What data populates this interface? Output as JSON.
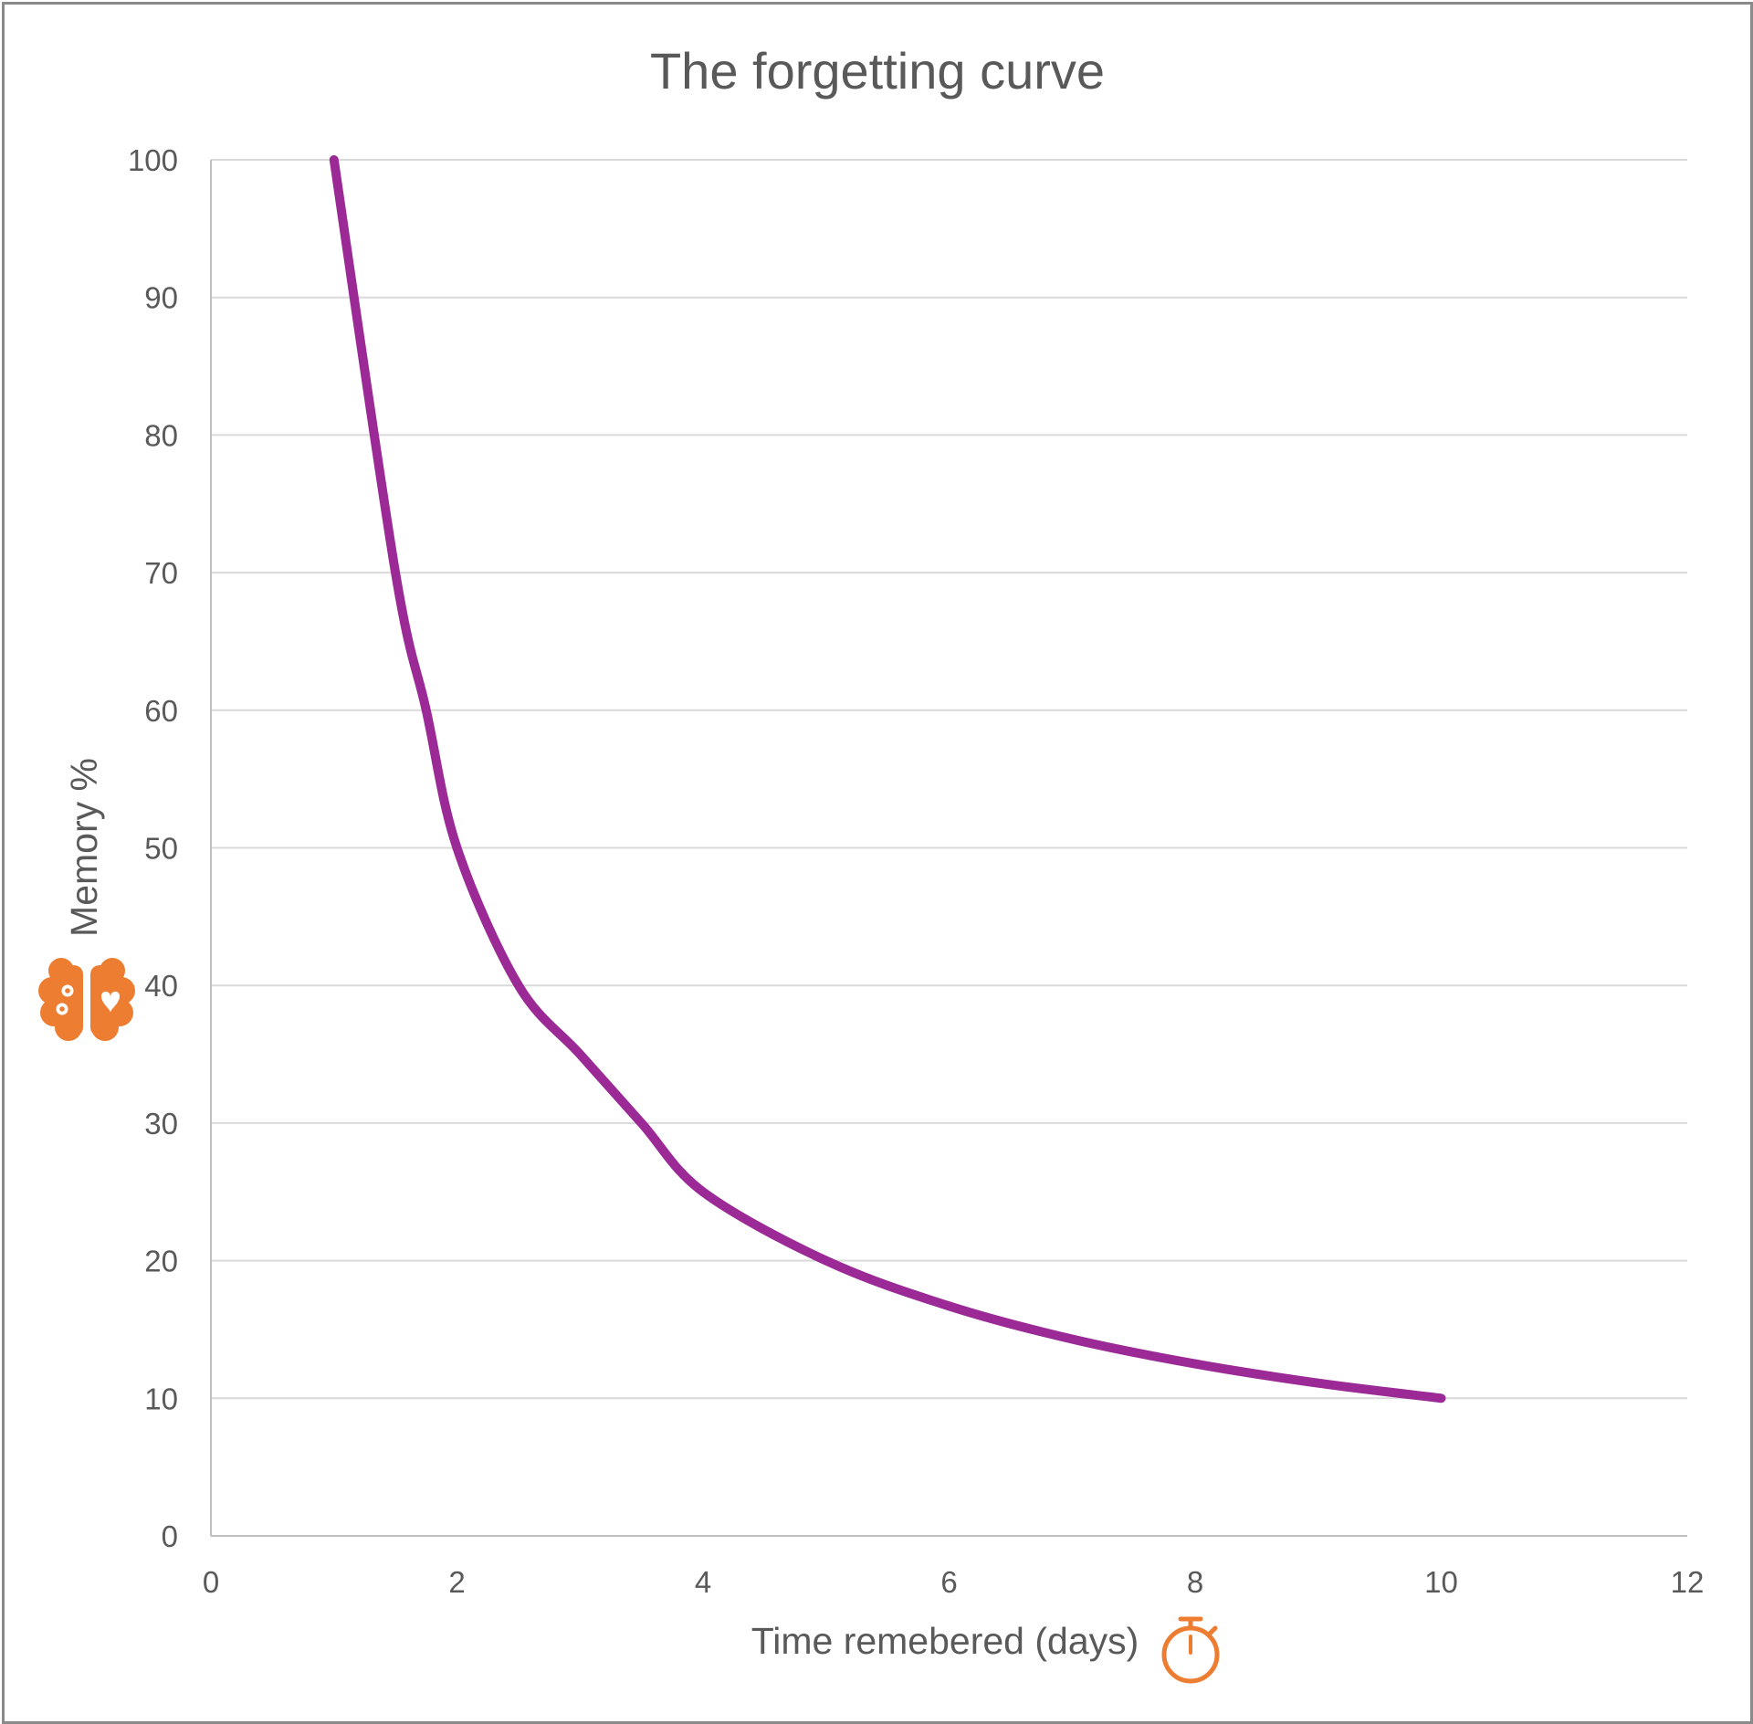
{
  "chart_data": {
    "type": "line",
    "title": "The forgetting curve",
    "xlabel": "Time remebered (days)",
    "ylabel": "Memory %",
    "xlim": [
      0,
      12
    ],
    "ylim": [
      0,
      100
    ],
    "xticks": [
      0,
      2,
      4,
      6,
      8,
      10,
      12
    ],
    "yticks": [
      0,
      10,
      20,
      30,
      40,
      50,
      60,
      70,
      80,
      90,
      100
    ],
    "grid": "horizontal",
    "legend": "none",
    "series": [
      {
        "color": "#9b2a96",
        "smooth": true,
        "x": [
          1,
          1.5,
          1.75,
          2,
          2.5,
          3,
          3.5,
          4,
          5,
          6,
          7,
          8,
          9,
          10
        ],
        "y": [
          100,
          70,
          60,
          50,
          40,
          35,
          30,
          25,
          20,
          16.7,
          14.3,
          12.5,
          11.1,
          10
        ]
      }
    ]
  },
  "icons": {
    "y_axis_icon": "brain-icon",
    "x_axis_icon": "stopwatch-icon"
  },
  "colors": {
    "line": "#9b2a96",
    "icon": "#ed7d31",
    "gridline": "#d9d9d9",
    "axis": "#bfbfbf",
    "text": "#595959",
    "frame": "#8a8a8a"
  }
}
